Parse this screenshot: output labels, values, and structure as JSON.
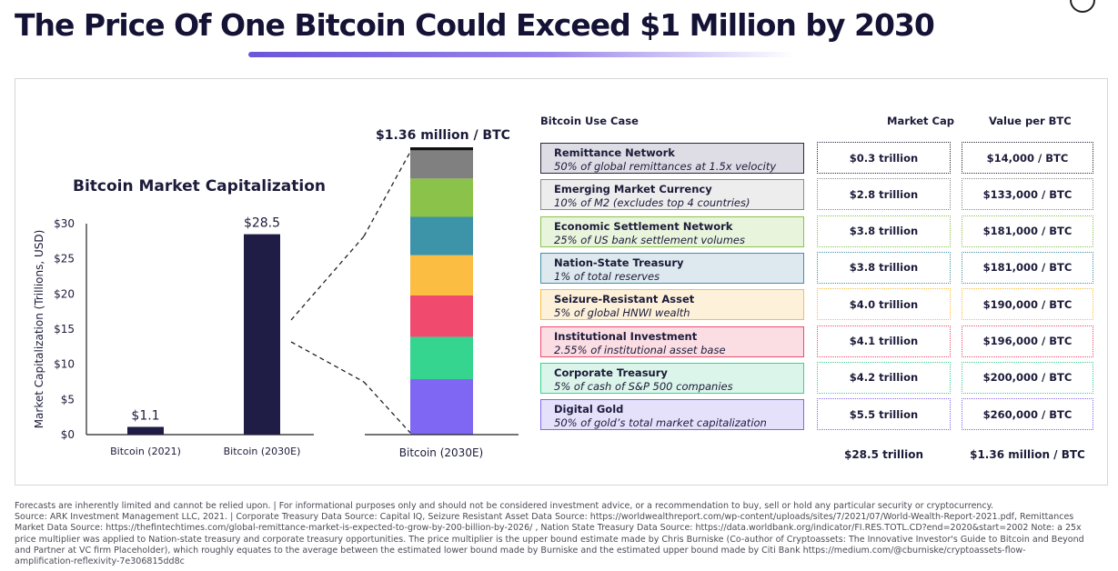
{
  "title": "The Price Of One Bitcoin Could Exceed $1 Million by 2030",
  "chart_data": [
    {
      "type": "bar",
      "title": "Bitcoin Market Capitalization",
      "ylabel": "Market Capitalization (Trillions, USD)",
      "yticks": [
        "$0",
        "$5",
        "$10",
        "$15",
        "$20",
        "$25",
        "$30"
      ],
      "ylim": [
        0,
        30
      ],
      "categories": [
        "Bitcoin (2021)",
        "Bitcoin (2030E)"
      ],
      "values": [
        1.1,
        28.5
      ],
      "value_labels": [
        "$1.1",
        "$28.5"
      ],
      "color": "#1f1d45"
    },
    {
      "type": "bar",
      "stacked": true,
      "title": "$1.36 million / BTC",
      "categories": [
        "Bitcoin (2030E)"
      ],
      "series": [
        {
          "name": "Digital Gold",
          "value": 5.5,
          "color": "#8067f3"
        },
        {
          "name": "Corporate Treasury",
          "value": 4.2,
          "color": "#35d48f"
        },
        {
          "name": "Institutional Investment",
          "value": 4.1,
          "color": "#f04a6e"
        },
        {
          "name": "Seizure-Resistant Asset",
          "value": 4.0,
          "color": "#fbbd42"
        },
        {
          "name": "Nation-State Treasury",
          "value": 3.8,
          "color": "#3d93a8"
        },
        {
          "name": "Economic Settlement Network",
          "value": 3.8,
          "color": "#8bc34a"
        },
        {
          "name": "Emerging Market Currency",
          "value": 2.8,
          "color": "#808080"
        },
        {
          "name": "Remittance Network",
          "value": 0.3,
          "color": "#111111"
        }
      ]
    },
    {
      "type": "table",
      "headers": {
        "use_case": "Bitcoin Use Case",
        "market_cap": "Market Cap",
        "value_per_btc": "Value per BTC"
      },
      "rows": [
        {
          "name": "Remittance Network",
          "desc": "50% of global remittances at 1.5x velocity",
          "market_cap": "$0.3 trillion",
          "value": "$14,000 / BTC",
          "border": "#2a2a3a",
          "bg": "#dedde5",
          "dot": "#2a2a3a"
        },
        {
          "name": "Emerging Market Currency",
          "desc": "10% of M2 (excludes top 4 countries)",
          "market_cap": "$2.8 trillion",
          "value": "$133,000 / BTC",
          "border": "#8a8a8a",
          "bg": "#ededed",
          "dot": "#8a8a8a"
        },
        {
          "name": "Economic Settlement Network",
          "desc": "25% of US bank settlement volumes",
          "market_cap": "$3.8 trillion",
          "value": "$181,000 / BTC",
          "border": "#8bc34a",
          "bg": "#e9f4dd",
          "dot": "#8bc34a"
        },
        {
          "name": "Nation-State Treasury",
          "desc": "1% of total reserves",
          "market_cap": "$3.8 trillion",
          "value": "$181,000 / BTC",
          "border": "#3d93a8",
          "bg": "#dde9ee",
          "dot": "#3d93a8"
        },
        {
          "name": "Seizure-Resistant Asset",
          "desc": "5% of global HNWI wealth",
          "market_cap": "$4.0 trillion",
          "value": "$190,000 / BTC",
          "border": "#fbbd42",
          "bg": "#fdf1da",
          "dot": "#fbbd42"
        },
        {
          "name": "Institutional Investment",
          "desc": "2.55% of institutional asset base",
          "market_cap": "$4.1 trillion",
          "value": "$196,000 / BTC",
          "border": "#f04a6e",
          "bg": "#fbdde4",
          "dot": "#f04a6e"
        },
        {
          "name": "Corporate Treasury",
          "desc": "5% of cash of S&P 500 companies",
          "market_cap": "$4.2 trillion",
          "value": "$200,000 / BTC",
          "border": "#35d48f",
          "bg": "#dcf5ea",
          "dot": "#35d48f"
        },
        {
          "name": "Digital Gold",
          "desc": "50% of gold’s total market capitalization",
          "market_cap": "$5.5 trillion",
          "value": "$260,000 / BTC",
          "border": "#8067f3",
          "bg": "#e6e1fb",
          "dot": "#8067f3"
        }
      ],
      "totals": {
        "market_cap": "$28.5 trillion",
        "value": "$1.36 million / BTC"
      }
    }
  ],
  "footer": [
    "Forecasts are inherently limited and cannot be relied upon. | For informational purposes only and should not be considered investment advice, or a recommendation to buy, sell or hold any particular security or cryptocurrency.",
    "Source: ARK Investment Management LLC, 2021.  |  Corporate Treasury Data Source: Capital IQ, Seizure Resistant Asset Data Source: https://worldwealthreport.com/wp-content/uploads/sites/7/2021/07/World-Wealth-Report-2021.pdf, Remittances",
    "Market Data Source: https://thefintechtimes.com/global-remittance-market-is-expected-to-grow-by-200-billion-by-2026/ , Nation State Treasury Data Source: https://data.worldbank.org/indicator/FI.RES.TOTL.CD?end=2020&start=2002 Note: a 25x",
    "price multiplier was applied to Nation-state treasury and corporate treasury opportunities. The price multiplier is  the upper bound estimate made by Chris Burniske (Co-author of Cryptoassets: The Innovative Investor's Guide to Bitcoin and Beyond",
    "and Partner at VC firm Placeholder), which roughly equates to the average between the estimated lower bound made by Burniske and the estimated upper bound made by Citi Bank https://medium.com/@cburniske/cryptoassets-flow-",
    "amplification-reflexivity-7e306815dd8c"
  ]
}
